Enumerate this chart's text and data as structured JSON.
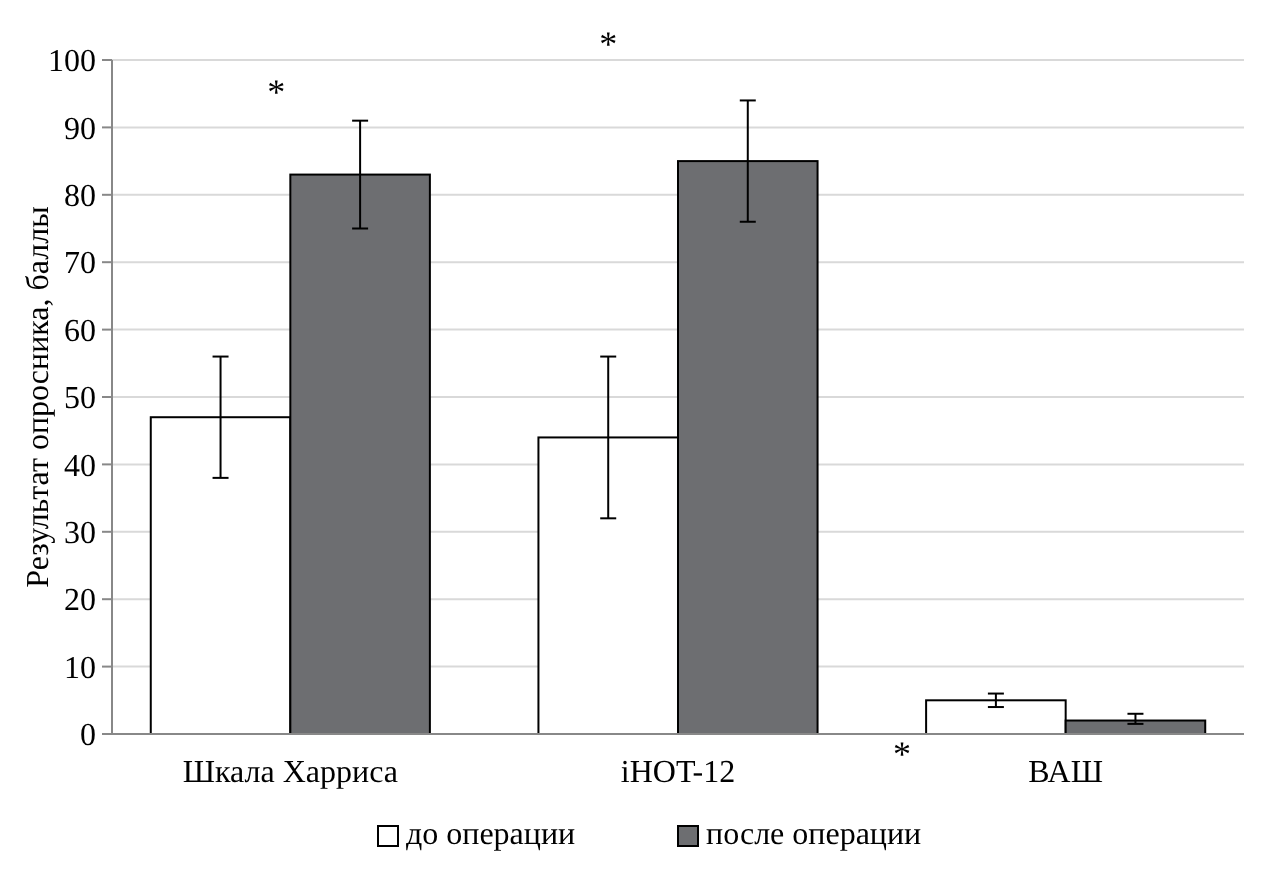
{
  "chart_data": {
    "type": "bar",
    "ylabel": "Результат опросника, баллы",
    "categories": [
      "Шкала Харриса",
      "iHOT-12",
      "ВАШ"
    ],
    "series": [
      {
        "name": "до операции",
        "color": "#ffffff",
        "values": [
          47,
          44,
          5
        ],
        "errors": [
          [
            38,
            56
          ],
          [
            32,
            56
          ],
          [
            4,
            6
          ]
        ]
      },
      {
        "name": "после операции",
        "color": "#6d6e71",
        "values": [
          83,
          85,
          2
        ],
        "errors": [
          [
            75,
            91
          ],
          [
            76,
            94
          ],
          [
            1.5,
            3
          ]
        ]
      }
    ],
    "ylim": [
      0,
      100
    ],
    "yticks": [
      0,
      10,
      20,
      30,
      40,
      50,
      60,
      70,
      80,
      90,
      100
    ],
    "grid": "y",
    "legend": "bottom",
    "annotations": [
      "*",
      "*",
      "*"
    ]
  }
}
